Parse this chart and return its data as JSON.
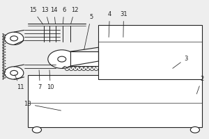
{
  "bg_color": "#eeeeee",
  "line_color": "#222222",
  "lw": 0.8,
  "label_fontsize": 6.0
}
